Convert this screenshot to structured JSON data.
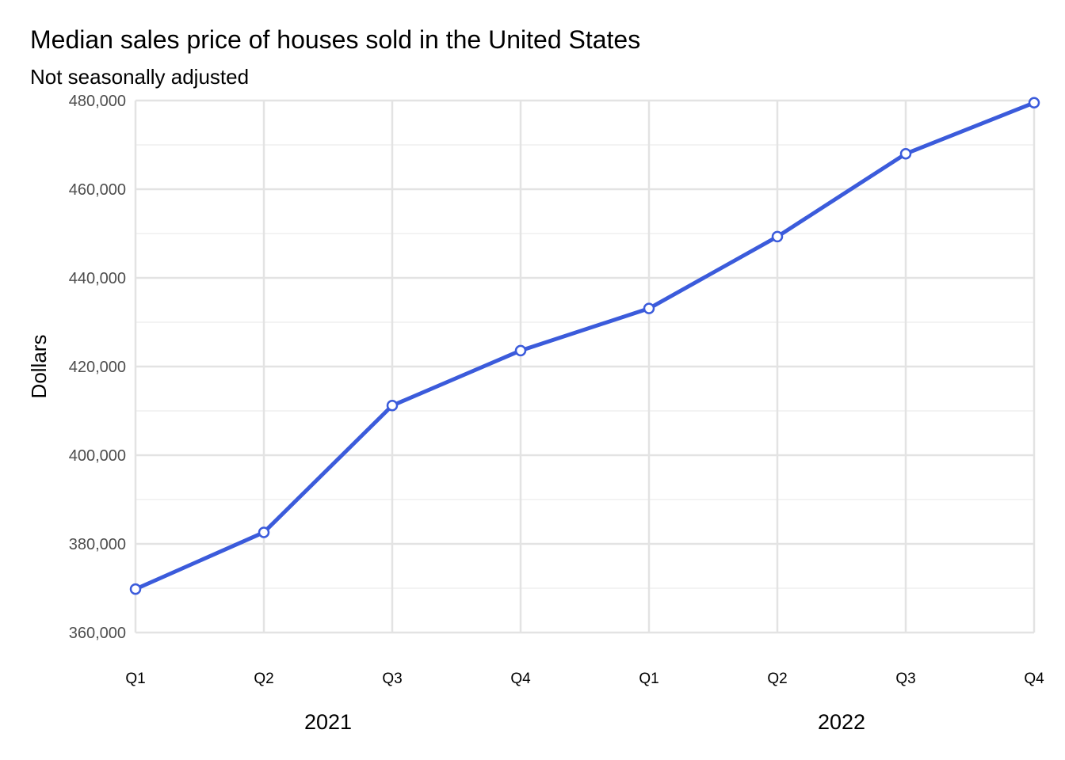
{
  "chart_data": {
    "type": "line",
    "title": "Median sales price of houses sold in the United States",
    "subtitle": "Not seasonally adjusted",
    "xlabel": "",
    "ylabel": "Dollars",
    "categories": [
      "Q1",
      "Q2",
      "Q3",
      "Q4",
      "Q1",
      "Q2",
      "Q3",
      "Q4"
    ],
    "x_groups": [
      {
        "label": "2021",
        "quarters": [
          "Q1",
          "Q2",
          "Q3",
          "Q4"
        ]
      },
      {
        "label": "2022",
        "quarters": [
          "Q1",
          "Q2",
          "Q3",
          "Q4"
        ]
      }
    ],
    "series": [
      {
        "values": [
          369800,
          382600,
          411200,
          423600,
          433100,
          449300,
          468000,
          479500
        ],
        "color": "#3b5bdb"
      }
    ],
    "yticks": [
      "360,000",
      "380,000",
      "400,000",
      "420,000",
      "440,000",
      "460,000",
      "480,000"
    ],
    "ylim": [
      360000,
      480000
    ],
    "grid": true,
    "legend": "none",
    "colors": {
      "line": "#3b5bdb",
      "marker_fill": "#ffffff",
      "grid_major": "#e3e3e3",
      "grid_minor": "#efefef"
    }
  }
}
